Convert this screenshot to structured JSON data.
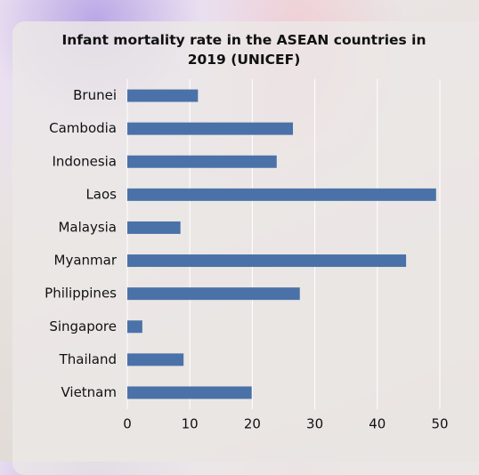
{
  "chart_data": {
    "type": "bar",
    "orientation": "horizontal",
    "title": "Infant mortality rate in the ASEAN countries in 2019 (UNICEF)",
    "categories": [
      "Brunei",
      "Cambodia",
      "Indonesia",
      "Laos",
      "Malaysia",
      "Myanmar",
      "Philippines",
      "Singapore",
      "Thailand",
      "Vietnam"
    ],
    "values": [
      11.3,
      26.5,
      23.9,
      49.4,
      8.5,
      44.6,
      27.6,
      2.4,
      9.0,
      19.9
    ],
    "color": "#4a72a8",
    "xlim": [
      0,
      50
    ],
    "xticks": [
      0,
      10,
      20,
      30,
      40,
      50
    ],
    "grid": true
  }
}
